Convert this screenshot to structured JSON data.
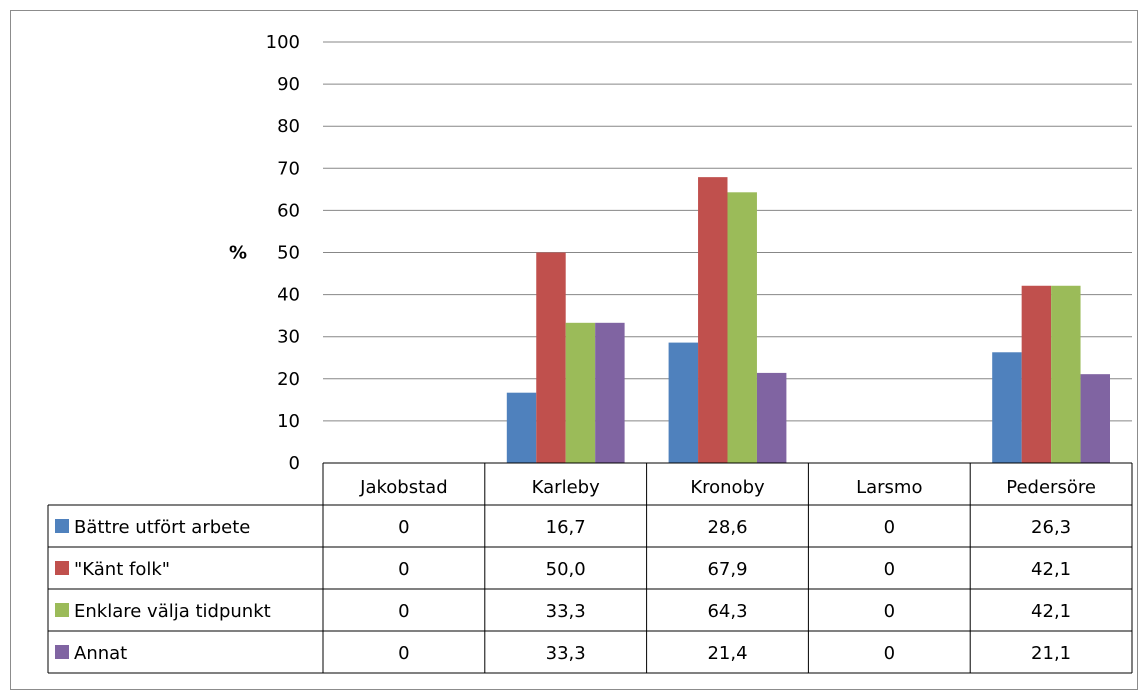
{
  "chart_data": {
    "type": "bar",
    "title": "",
    "xlabel": "",
    "ylabel": "%",
    "ylim": [
      0,
      100
    ],
    "yticks": [
      0,
      10,
      20,
      30,
      40,
      50,
      60,
      70,
      80,
      90,
      100
    ],
    "grid": true,
    "legend": "data-table",
    "categories": [
      "Jakobstad",
      "Karleby",
      "Kronoby",
      "Larsmo",
      "Pedersöre"
    ],
    "series": [
      {
        "name": "Bättre utfört arbete",
        "color": "#4f81bd",
        "values": [
          0,
          16.7,
          28.6,
          0,
          26.3
        ],
        "labels": [
          "0",
          "16,7",
          "28,6",
          "0",
          "26,3"
        ]
      },
      {
        "name": "\"Känt folk\"",
        "color": "#c0504d",
        "values": [
          0,
          50.0,
          67.9,
          0,
          42.1
        ],
        "labels": [
          "0",
          "50,0",
          "67,9",
          "0",
          "42,1"
        ]
      },
      {
        "name": "Enklare välja tidpunkt",
        "color": "#9bbb59",
        "values": [
          0,
          33.3,
          64.3,
          0,
          42.1
        ],
        "labels": [
          "0",
          "33,3",
          "64,3",
          "0",
          "42,1"
        ]
      },
      {
        "name": "Annat",
        "color": "#8064a2",
        "values": [
          0,
          33.3,
          21.4,
          0,
          21.1
        ],
        "labels": [
          "0",
          "33,3",
          "21,4",
          "0",
          "21,1"
        ]
      }
    ]
  }
}
